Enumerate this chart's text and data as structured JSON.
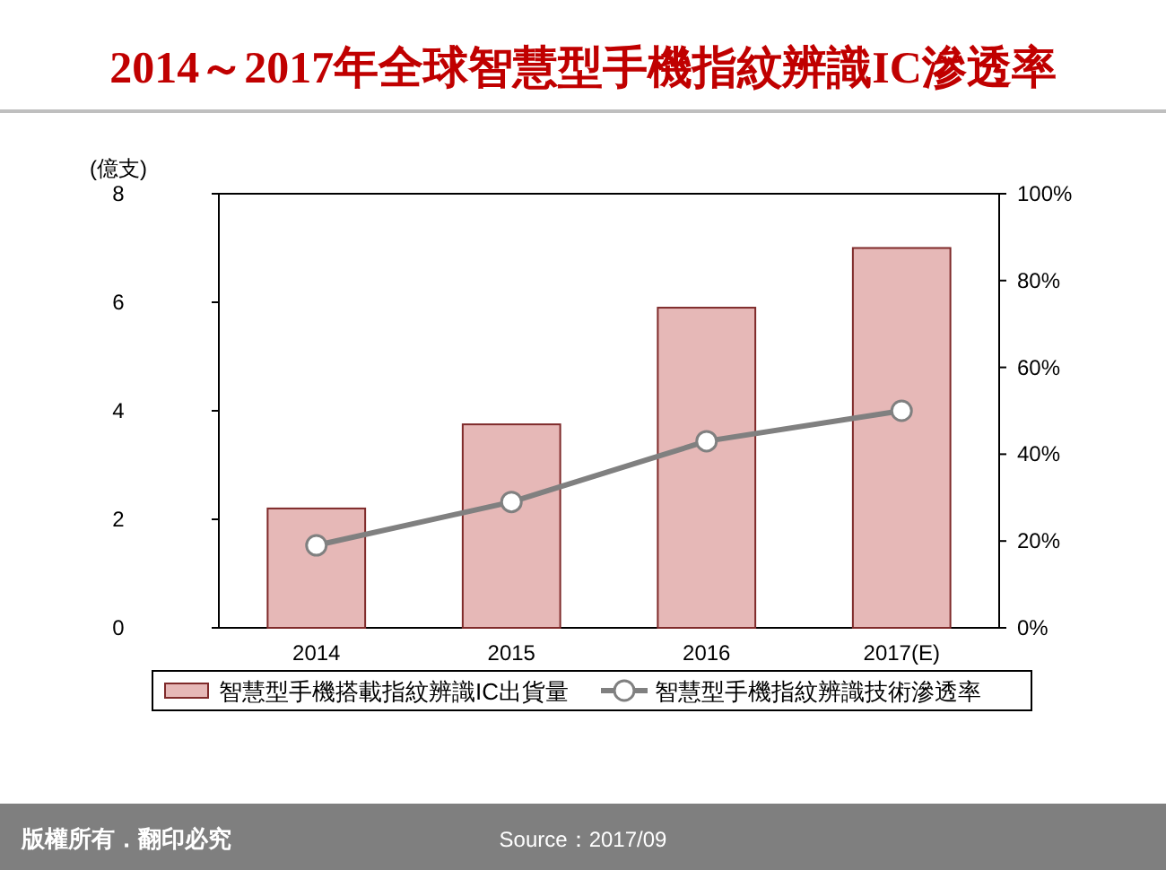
{
  "chart_data": {
    "type": "bar",
    "title": "2014～2017年全球智慧型手機指紋辨識IC滲透率",
    "ylabel": "(億支)",
    "categories": [
      "2014",
      "2015",
      "2016",
      "2017(E)"
    ],
    "series": [
      {
        "name": "智慧型手機搭載指紋辨識IC出貨量",
        "color": "#e6b8b7",
        "values": [
          2.2,
          3.75,
          5.9,
          7.0
        ]
      },
      {
        "name": "智慧型手機指紋辨識技術滲透率",
        "type": "line",
        "axis": "y2",
        "color": "#808080",
        "marker": "circle",
        "values": [
          19,
          29,
          43,
          50
        ]
      }
    ],
    "ylim": [
      0,
      8
    ],
    "yticks": [
      0,
      2,
      4,
      6,
      8
    ],
    "y2lim": [
      0,
      100
    ],
    "y2ticks": [
      {
        "value": 0,
        "label": "0%"
      },
      {
        "value": 20,
        "label": "20%"
      },
      {
        "value": 40,
        "label": "40%"
      },
      {
        "value": 60,
        "label": "60%"
      },
      {
        "value": 80,
        "label": "80%"
      },
      {
        "value": 100,
        "label": "100%"
      }
    ],
    "grid": false,
    "legend": "bottom",
    "annotations": [
      "版權所有．翻印必究",
      "Source：2017/09"
    ]
  }
}
